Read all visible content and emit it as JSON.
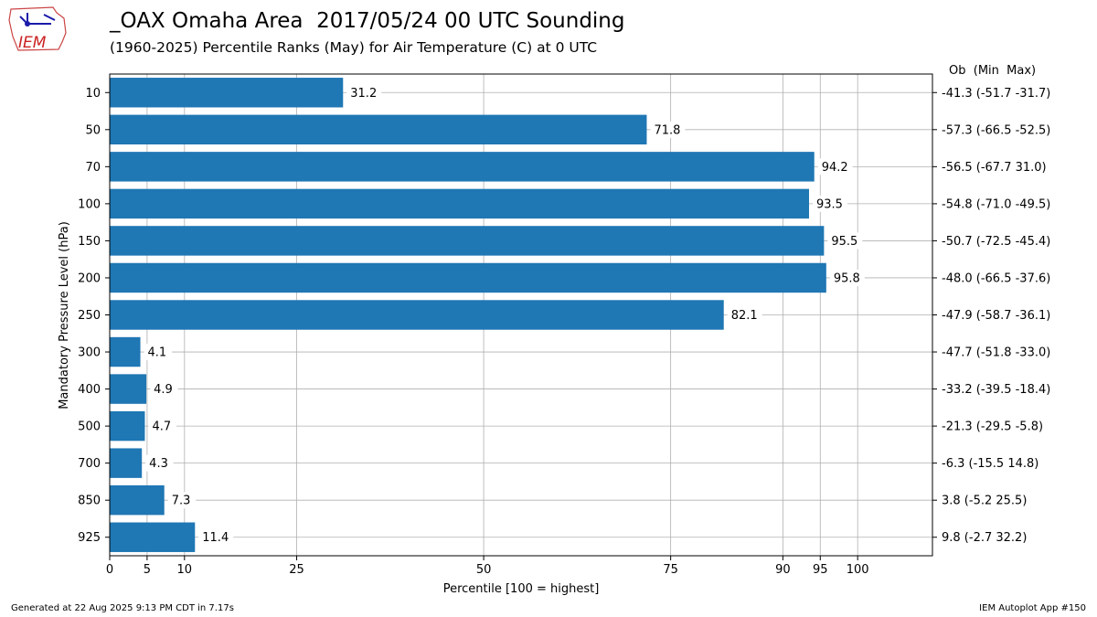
{
  "logo": {
    "text": "IEM",
    "icon": "iowa-state-logo"
  },
  "footer": {
    "generated": "Generated at 22 Aug 2025 9:13 PM CDT in 7.17s",
    "app": "IEM Autoplot App #150"
  },
  "chart_data": {
    "type": "bar",
    "orientation": "horizontal",
    "title": "_OAX Omaha Area  2017/05/24 00 UTC Sounding",
    "subtitle": "(1960-2025) Percentile Ranks (May) for Air Temperature (C) at 0 UTC",
    "xlabel": "Percentile [100 = highest]",
    "ylabel": "Mandatory Pressure Level (hPa)",
    "right_axis_header": "Ob  (Min  Max)",
    "xlim": [
      0,
      110
    ],
    "xticks": [
      0,
      5,
      10,
      25,
      50,
      75,
      90,
      95,
      100
    ],
    "grid": true,
    "bar_color": "#1f77b4",
    "categories": [
      "10",
      "50",
      "70",
      "100",
      "150",
      "200",
      "250",
      "300",
      "400",
      "500",
      "700",
      "850",
      "925"
    ],
    "values": [
      31.2,
      71.8,
      94.2,
      93.5,
      95.5,
      95.8,
      82.1,
      4.1,
      4.9,
      4.7,
      4.3,
      7.3,
      11.4
    ],
    "value_labels": [
      "31.2",
      "71.8",
      "94.2",
      "93.5",
      "95.5",
      "95.8",
      "82.1",
      "4.1",
      "4.9",
      "4.7",
      "4.3",
      "7.3",
      "11.4"
    ],
    "right_labels": [
      "-41.3 (-51.7 -31.7)",
      "-57.3 (-66.5 -52.5)",
      "-56.5 (-67.7 31.0)",
      "-54.8 (-71.0 -49.5)",
      "-50.7 (-72.5 -45.4)",
      "-48.0 (-66.5 -37.6)",
      "-47.9 (-58.7 -36.1)",
      "-47.7 (-51.8 -33.0)",
      "-33.2 (-39.5 -18.4)",
      "-21.3 (-29.5 -5.8)",
      "-6.3 (-15.5 14.8)",
      "3.8 (-5.2 25.5)",
      "9.8 (-2.7 32.2)"
    ]
  }
}
